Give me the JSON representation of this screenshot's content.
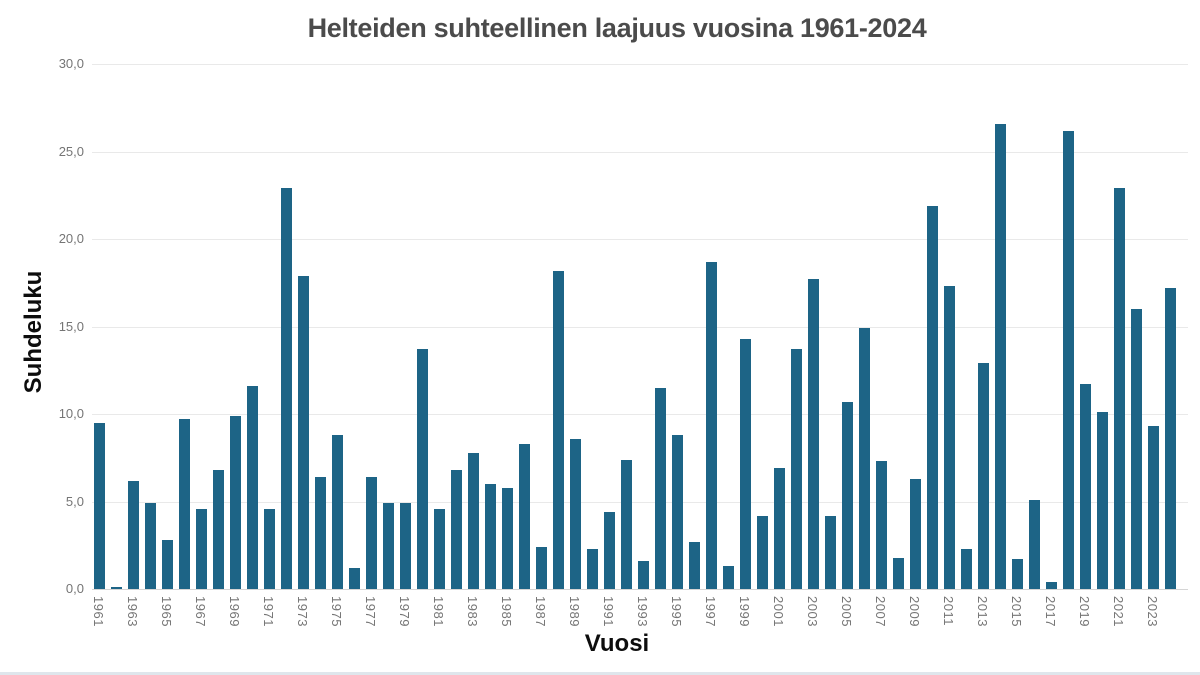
{
  "chart_data": {
    "type": "bar",
    "title": "Helteiden suhteellinen laajuus vuosina 1961-2024",
    "xlabel": "Vuosi",
    "ylabel": "Suhdeluku",
    "ylim": [
      0,
      30
    ],
    "ytick_step": 5,
    "ytick_labels": [
      "0,0",
      "5,0",
      "10,0",
      "15,0",
      "20,0",
      "25,0",
      "30,0"
    ],
    "grid": true,
    "legend": "none",
    "bar_color": "#1d6486",
    "x": [
      1961,
      1962,
      1963,
      1964,
      1965,
      1966,
      1967,
      1968,
      1969,
      1970,
      1971,
      1972,
      1973,
      1974,
      1975,
      1976,
      1977,
      1978,
      1979,
      1980,
      1981,
      1982,
      1983,
      1984,
      1985,
      1986,
      1987,
      1988,
      1989,
      1990,
      1991,
      1992,
      1993,
      1994,
      1995,
      1996,
      1997,
      1998,
      1999,
      2000,
      2001,
      2002,
      2003,
      2004,
      2005,
      2006,
      2007,
      2008,
      2009,
      2010,
      2011,
      2012,
      2013,
      2014,
      2015,
      2016,
      2017,
      2018,
      2019,
      2020,
      2021,
      2022,
      2023,
      2024
    ],
    "values": [
      9.5,
      0.1,
      6.2,
      4.9,
      2.8,
      9.7,
      4.6,
      6.8,
      9.9,
      11.6,
      4.6,
      22.9,
      17.9,
      6.4,
      8.8,
      1.2,
      6.4,
      4.9,
      4.9,
      13.7,
      4.6,
      6.8,
      7.8,
      6.0,
      5.8,
      8.3,
      2.4,
      18.2,
      8.6,
      2.3,
      4.4,
      7.4,
      1.6,
      11.5,
      8.8,
      2.7,
      18.7,
      1.3,
      14.3,
      4.2,
      6.9,
      13.7,
      17.7,
      4.2,
      10.7,
      14.9,
      7.3,
      1.8,
      6.3,
      21.9,
      17.3,
      2.3,
      12.9,
      26.6,
      1.7,
      5.1,
      0.4,
      26.2,
      11.7,
      10.1,
      22.9,
      16.0,
      9.3,
      17.2
    ],
    "xtick_labels": [
      "1961",
      "1963",
      "1965",
      "1967",
      "1969",
      "1971",
      "1973",
      "1975",
      "1977",
      "1979",
      "1981",
      "1983",
      "1985",
      "1987",
      "1989",
      "1991",
      "1993",
      "1995",
      "1997",
      "1999",
      "2001",
      "2003",
      "2005",
      "2007",
      "2009",
      "2011",
      "2013",
      "2015",
      "2017",
      "2019",
      "2021",
      "2023"
    ]
  },
  "colors": {
    "bar": "#1d6486",
    "title_text": "#4b4b4b",
    "tick_text": "#757575",
    "gridline": "#e9e9e9",
    "axis_line": "#d5d5d5",
    "bottom_border": "#dfe6ec",
    "background": "#ffffff"
  }
}
